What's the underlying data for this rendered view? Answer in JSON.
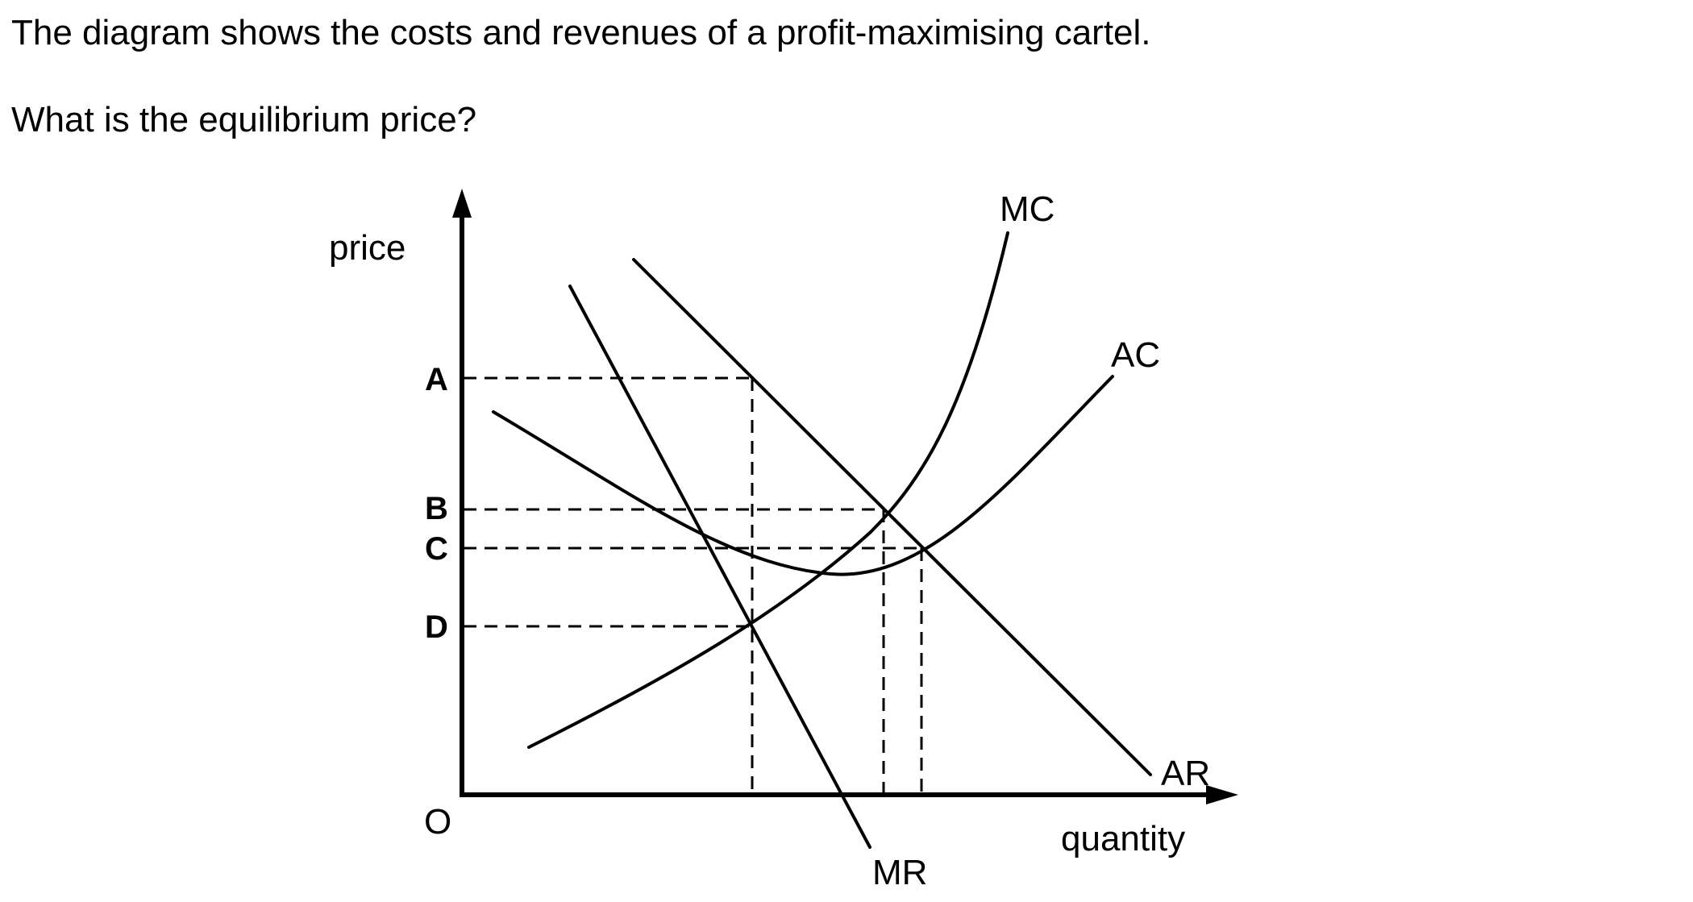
{
  "question": {
    "line1": "The diagram shows the costs and revenues of a profit-maximising cartel.",
    "line2": "What is the equilibrium price?"
  },
  "diagram": {
    "y_axis_label": "price",
    "x_axis_label": "quantity",
    "origin_label": "O",
    "price_levels": [
      "A",
      "B",
      "C",
      "D"
    ],
    "curves": {
      "mc": "MC",
      "ac": "AC",
      "ar": "AR",
      "mr": "MR"
    }
  }
}
